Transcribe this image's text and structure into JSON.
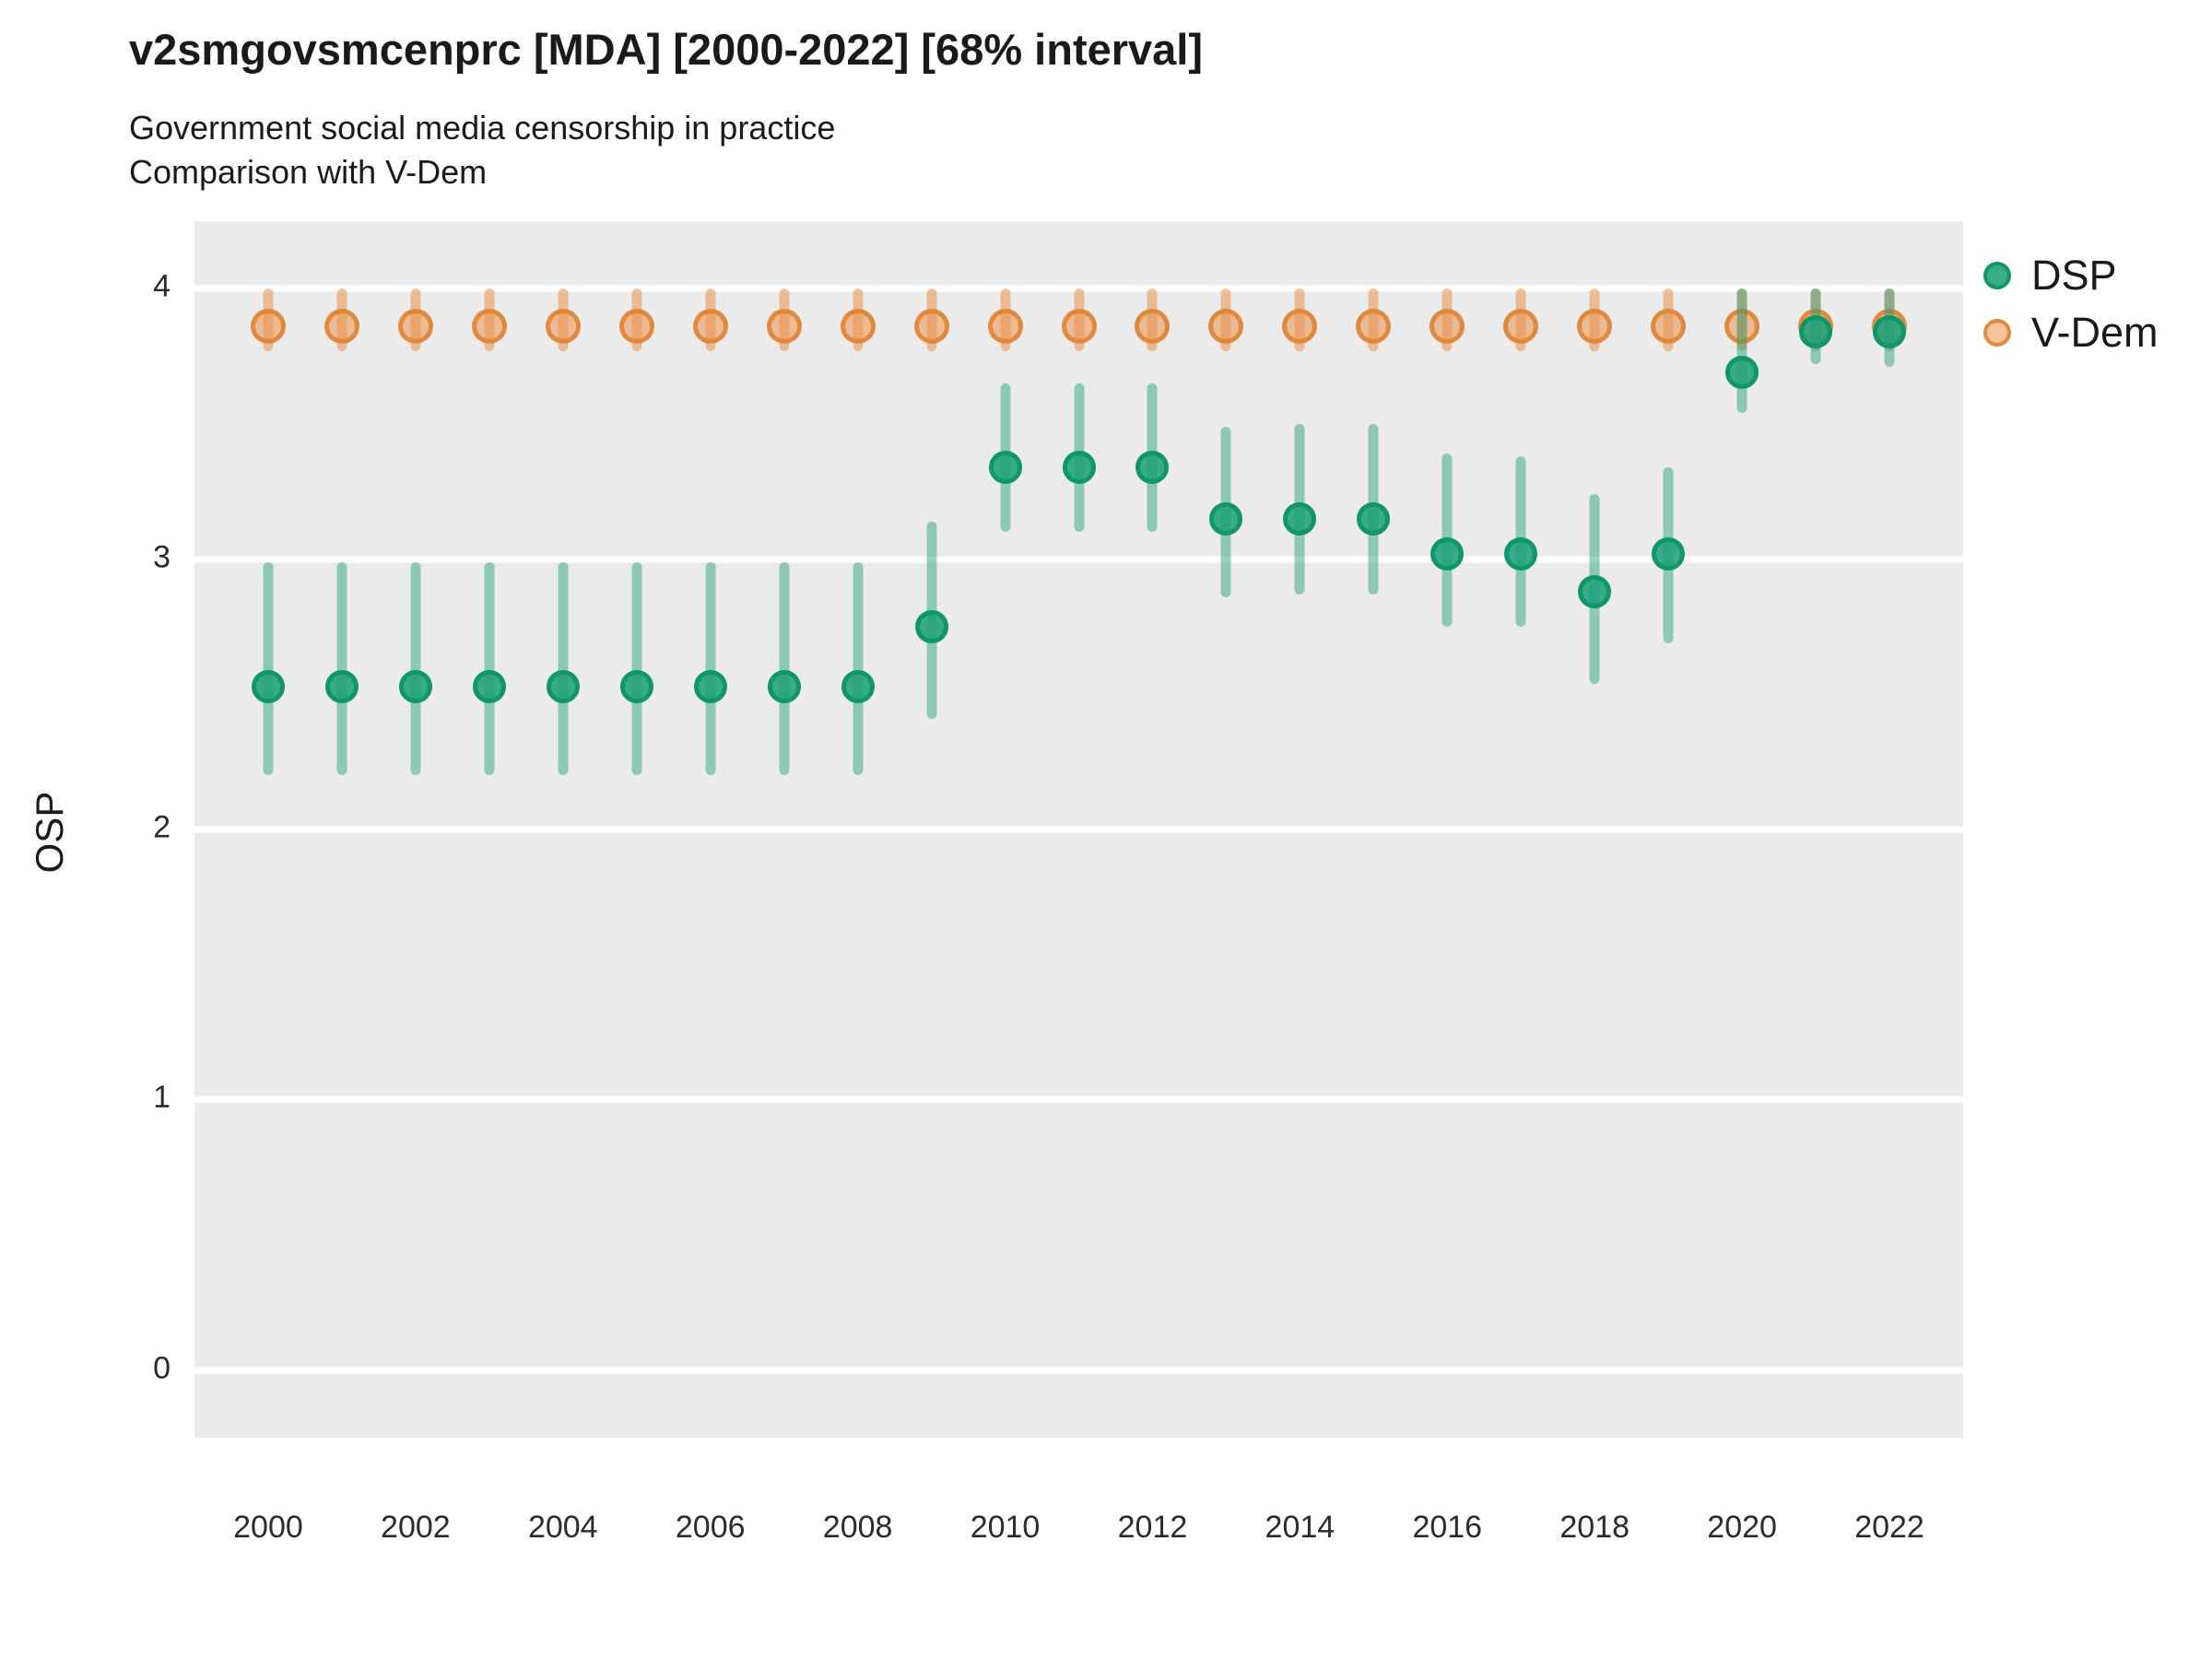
{
  "header": {
    "title": "v2smgovsmcenprc [MDA] [2000-2022] [68% interval]",
    "subtitle1": "Government social media censorship in practice",
    "subtitle2": "Comparison with V-Dem"
  },
  "chart_data": {
    "type": "scatter",
    "title": "v2smgovsmcenprc [MDA] [2000-2022] [68% interval]",
    "subtitle": [
      "Government social media censorship in practice",
      "Comparison with V-Dem"
    ],
    "xlabel": "",
    "ylabel": "OSP",
    "xlim": [
      1999,
      2023
    ],
    "ylim": [
      -0.25,
      4.25
    ],
    "yticks": [
      0,
      1,
      2,
      3,
      4
    ],
    "xticks": [
      2000,
      2002,
      2004,
      2006,
      2008,
      2010,
      2012,
      2014,
      2016,
      2018,
      2020,
      2022
    ],
    "grid": "horizontal-only",
    "legend_position": "right",
    "interval_label": "68% interval",
    "x": [
      2000,
      2001,
      2002,
      2003,
      2004,
      2005,
      2006,
      2007,
      2008,
      2009,
      2010,
      2011,
      2012,
      2013,
      2014,
      2015,
      2016,
      2017,
      2018,
      2019,
      2020,
      2021,
      2022
    ],
    "series": [
      {
        "name": "DSP",
        "color": "#1b9e77",
        "point_fill": "rgba(30,160,120,0.88)",
        "point_border": "rgba(16,150,108,1)",
        "bar_color": "rgba(27,158,119,0.45)",
        "values": [
          2.53,
          2.53,
          2.53,
          2.53,
          2.53,
          2.53,
          2.53,
          2.53,
          2.53,
          2.75,
          3.34,
          3.34,
          3.34,
          3.15,
          3.15,
          3.15,
          3.02,
          3.02,
          2.88,
          3.02,
          3.69,
          3.84,
          3.84
        ],
        "lo": [
          2.2,
          2.2,
          2.2,
          2.2,
          2.2,
          2.2,
          2.2,
          2.2,
          2.2,
          2.41,
          3.1,
          3.1,
          3.1,
          2.86,
          2.87,
          2.87,
          2.75,
          2.75,
          2.54,
          2.69,
          3.54,
          3.72,
          3.71
        ],
        "hi": [
          2.99,
          2.99,
          2.99,
          2.99,
          2.99,
          2.99,
          2.99,
          2.99,
          2.99,
          3.14,
          3.65,
          3.65,
          3.65,
          3.49,
          3.5,
          3.5,
          3.39,
          3.38,
          3.24,
          3.34,
          4.0,
          4.0,
          4.0
        ]
      },
      {
        "name": "V-Dem",
        "color": "#e68c42",
        "point_fill": "rgba(233,148,76,0.55)",
        "point_border": "rgba(226,128,46,0.85)",
        "bar_color": "rgba(230,140,66,0.5)",
        "values": [
          3.86,
          3.86,
          3.86,
          3.86,
          3.86,
          3.86,
          3.86,
          3.86,
          3.86,
          3.86,
          3.86,
          3.86,
          3.86,
          3.86,
          3.86,
          3.86,
          3.86,
          3.86,
          3.86,
          3.86,
          3.86,
          3.86,
          3.86
        ],
        "lo": [
          3.77,
          3.77,
          3.77,
          3.77,
          3.77,
          3.77,
          3.77,
          3.77,
          3.77,
          3.77,
          3.77,
          3.77,
          3.77,
          3.77,
          3.77,
          3.77,
          3.77,
          3.77,
          3.77,
          3.77,
          3.77,
          3.77,
          3.77
        ],
        "hi": [
          4.0,
          4.0,
          4.0,
          4.0,
          4.0,
          4.0,
          4.0,
          4.0,
          4.0,
          4.0,
          4.0,
          4.0,
          4.0,
          4.0,
          4.0,
          4.0,
          4.0,
          4.0,
          4.0,
          4.0,
          4.0,
          4.0,
          4.0
        ]
      }
    ]
  },
  "legend": {
    "items": [
      {
        "label": "DSP"
      },
      {
        "label": "V-Dem"
      }
    ]
  },
  "axes": {
    "y_label": "OSP",
    "y_tick_labels": [
      "0",
      "1",
      "2",
      "3",
      "4"
    ],
    "x_tick_labels": [
      "2000",
      "2002",
      "2004",
      "2006",
      "2008",
      "2010",
      "2012",
      "2014",
      "2016",
      "2018",
      "2020",
      "2022"
    ]
  }
}
